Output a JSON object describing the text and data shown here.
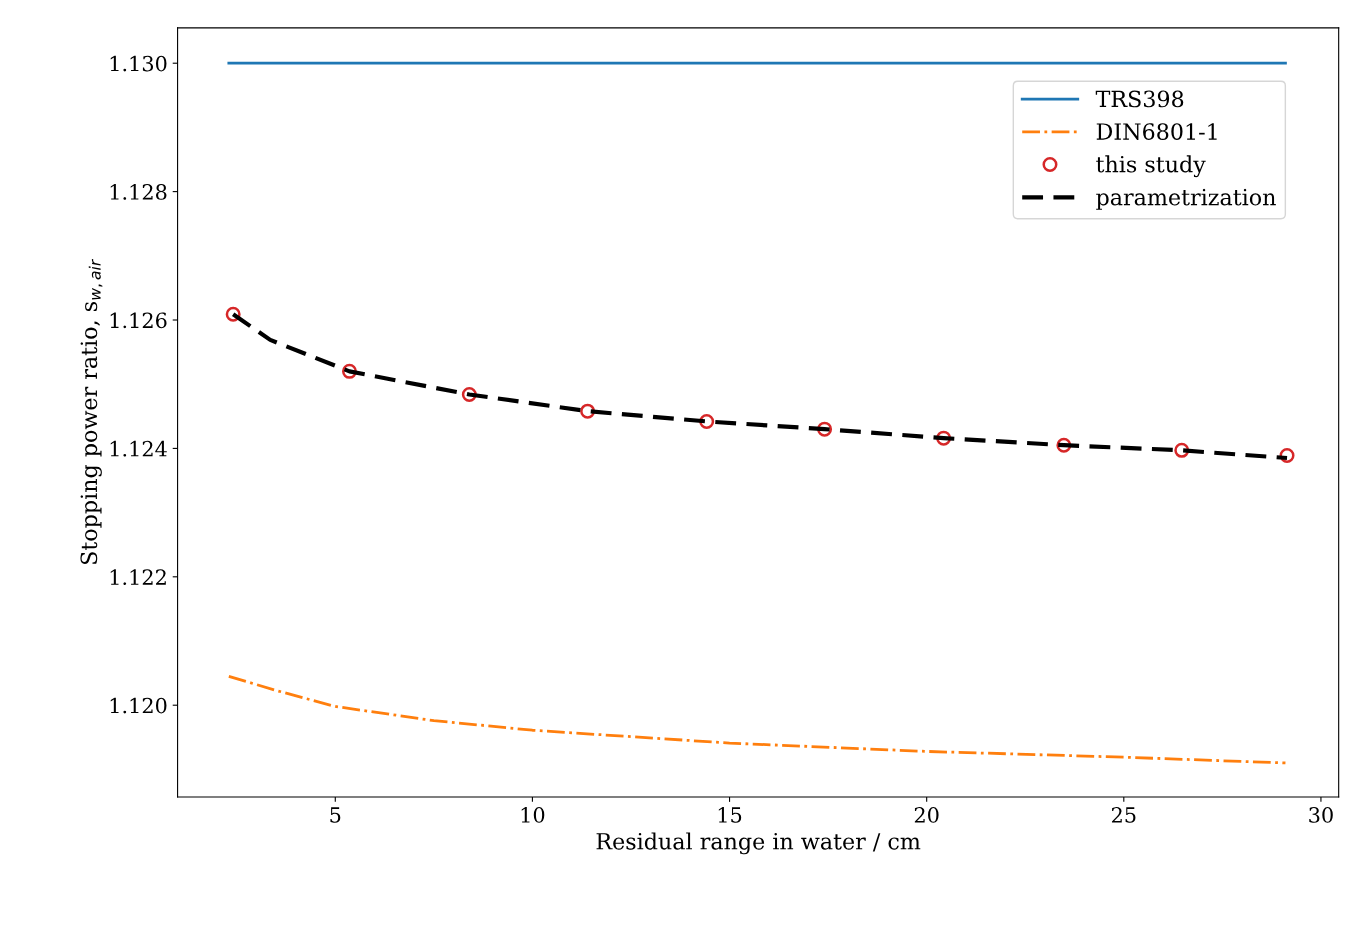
{
  "chart_data": {
    "type": "line",
    "xlabel": "Residual range in water / cm",
    "ylabel": "Stopping power ratio, s$_{w,air}$",
    "xlim": [
      1.0,
      30.45
    ],
    "ylim": [
      1.11857,
      1.13055
    ],
    "xticks": [
      5,
      10,
      15,
      20,
      25,
      30
    ],
    "yticks": [
      {
        "value": 1.12,
        "label": "1.120"
      },
      {
        "value": 1.122,
        "label": "1.122"
      },
      {
        "value": 1.124,
        "label": "1.124"
      },
      {
        "value": 1.126,
        "label": "1.126"
      },
      {
        "value": 1.128,
        "label": "1.128"
      },
      {
        "value": 1.13,
        "label": "1.130"
      }
    ],
    "grid": false,
    "legend": "top right",
    "series": [
      {
        "name": "TRS398",
        "color": "#1f77b4",
        "line_style": "solid",
        "x": [
          2.3,
          29.1
        ],
        "values": [
          1.13,
          1.13
        ]
      },
      {
        "name": "DIN6801-1",
        "color": "#ff7f0e",
        "line_style": "dashdot",
        "x": [
          2.3,
          3.5,
          5,
          7.5,
          10,
          15,
          20,
          25,
          29.1
        ],
        "values": [
          1.12045,
          1.12023,
          1.11998,
          1.11976,
          1.11961,
          1.11941,
          1.11928,
          1.11919,
          1.1191
        ]
      },
      {
        "name": "this study",
        "type": "scatter",
        "color": "#d62728",
        "marker": "circle",
        "x": [
          2.41,
          5.36,
          8.4,
          11.4,
          14.42,
          17.41,
          20.43,
          23.48,
          26.47,
          29.14
        ],
        "values": [
          1.12609,
          1.1252,
          1.12484,
          1.12458,
          1.12442,
          1.1243,
          1.12416,
          1.12405,
          1.12397,
          1.12389
        ]
      },
      {
        "name": "parametrization",
        "color": "#000000",
        "line_style": "dashed",
        "x": [
          2.41,
          3.35,
          5.36,
          8.4,
          11.4,
          14.42,
          17.41,
          20.43,
          23.48,
          26.47,
          29.14
        ],
        "values": [
          1.12609,
          1.12569,
          1.1252,
          1.12484,
          1.12458,
          1.12442,
          1.1243,
          1.12416,
          1.12405,
          1.12397,
          1.12385
        ]
      }
    ]
  }
}
